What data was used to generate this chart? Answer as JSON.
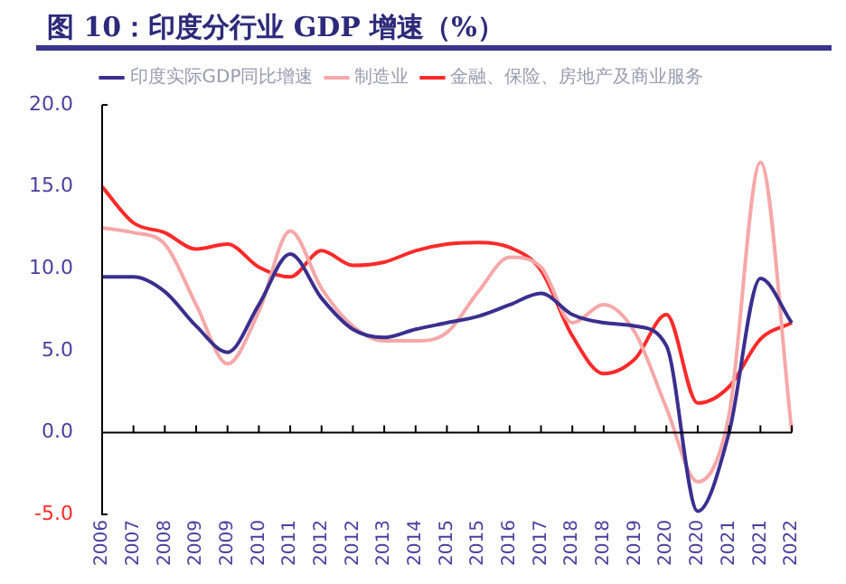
{
  "chart_data": {
    "type": "line",
    "title": "图 10：印度分行业 GDP 增速（%）",
    "categories": [
      "2006",
      "2007",
      "2008",
      "2009",
      "2009",
      "2010",
      "2011",
      "2012",
      "2012",
      "2013",
      "2014",
      "2015",
      "2015",
      "2016",
      "2017",
      "2018",
      "2018",
      "2019",
      "2020",
      "2020",
      "2021",
      "2021",
      "2022"
    ],
    "series": [
      {
        "name": "印度实际GDP同比增速",
        "color": "#3a2f8f",
        "values": [
          9.5,
          9.5,
          8.6,
          6.5,
          4.9,
          7.8,
          10.9,
          8.2,
          6.3,
          5.8,
          6.3,
          6.7,
          7.1,
          7.8,
          8.5,
          7.2,
          6.7,
          6.5,
          5.3,
          -4.8,
          0,
          9.4,
          6.7
        ]
      },
      {
        "name": "制造业",
        "color": "#f6a8a8",
        "values": [
          12.5,
          12.2,
          11.5,
          7.8,
          4.2,
          7.4,
          12.3,
          8.8,
          6.5,
          5.6,
          5.6,
          6.1,
          8.6,
          10.7,
          10.1,
          6.7,
          7.8,
          6.1,
          1.5,
          -3,
          1.1,
          16.5,
          0.1
        ]
      },
      {
        "name": "金融、保险、房地产及商业服务",
        "color": "#ff2a2a",
        "values": [
          15,
          12.8,
          12.2,
          11.2,
          11.5,
          10.1,
          9.5,
          11.1,
          10.2,
          10.4,
          11.1,
          11.5,
          11.6,
          11.3,
          9.9,
          5.9,
          3.6,
          4.5,
          7.2,
          1.8,
          2.8,
          5.7,
          6.7
        ]
      }
    ],
    "ylim": [
      -5,
      20
    ],
    "yticks": [
      {
        "value": -5,
        "label": "-5.0"
      },
      {
        "value": 0,
        "label": "0.0"
      },
      {
        "value": 5,
        "label": "5.0"
      },
      {
        "value": 10,
        "label": "10.0"
      },
      {
        "value": 15,
        "label": "15.0"
      },
      {
        "value": 20,
        "label": "20.0"
      }
    ],
    "legend": "top",
    "marker": "none",
    "line_style": "solid"
  }
}
